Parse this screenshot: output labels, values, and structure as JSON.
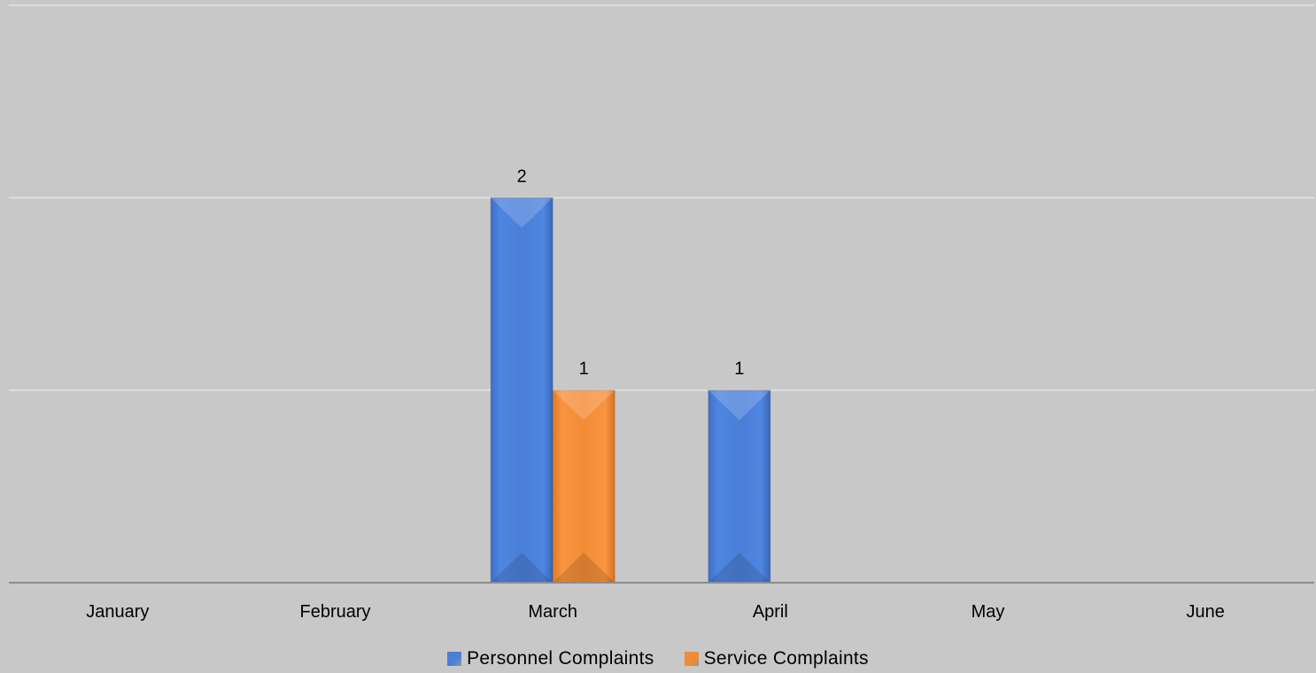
{
  "chart_data": {
    "type": "bar",
    "categories": [
      "January",
      "February",
      "March",
      "April",
      "May",
      "June"
    ],
    "series": [
      {
        "name": "Personnel Complaints",
        "color": "#4a7fd8",
        "values": [
          0,
          0,
          2,
          1,
          0,
          0
        ]
      },
      {
        "name": "Service Complaints",
        "color": "#f28b34",
        "values": [
          0,
          0,
          1,
          0,
          0,
          0
        ]
      }
    ],
    "data_labels": [
      {
        "series": 0,
        "category": 2,
        "text": "2"
      },
      {
        "series": 1,
        "category": 2,
        "text": "1"
      },
      {
        "series": 0,
        "category": 3,
        "text": "1"
      }
    ],
    "ylim": [
      0,
      3
    ],
    "gridlines": true,
    "legend_position": "bottom",
    "title": "",
    "xlabel": "",
    "ylabel": "",
    "background": "#c8c8c8",
    "gridline_color": "#e6e6e6",
    "axis_color": "#8c8c8c"
  }
}
